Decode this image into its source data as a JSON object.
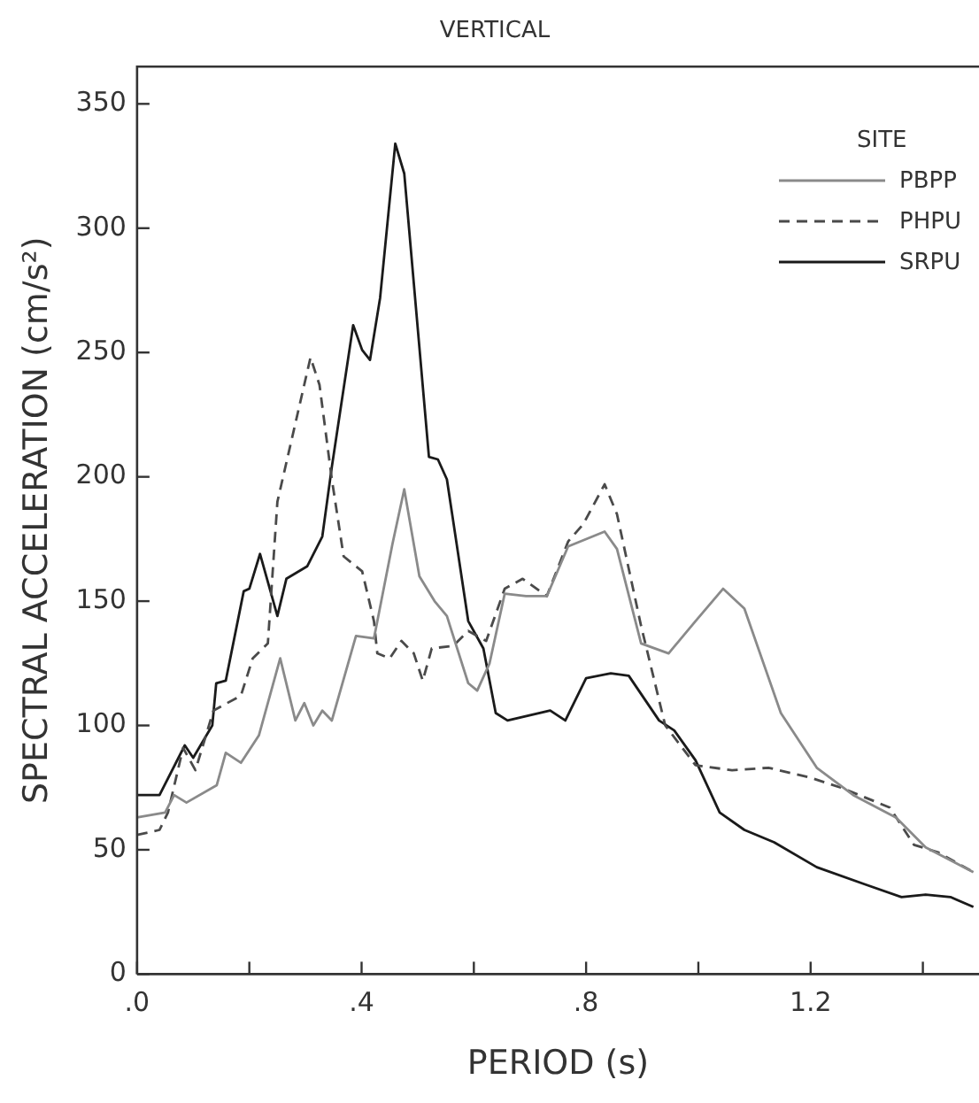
{
  "chart_data": {
    "type": "line",
    "title": "VERTICAL",
    "xlabel": "PERIOD (s)",
    "ylabel": "SPECTRAL ACCELERATION (cm/s²)",
    "legend_title": "SITE",
    "legend": "top right",
    "grid": false,
    "marker": "none",
    "xlim": [
      0,
      1.5
    ],
    "ylim": [
      0,
      365
    ],
    "xticks": [
      {
        "value": 0,
        "label": ".0"
      },
      {
        "value": 0.2,
        "label": null
      },
      {
        "value": 0.4,
        "label": ".4"
      },
      {
        "value": 0.6,
        "label": null
      },
      {
        "value": 0.8,
        "label": ".8"
      },
      {
        "value": 1.0,
        "label": null
      },
      {
        "value": 1.2,
        "label": "1.2"
      },
      {
        "value": 1.4,
        "label": null
      }
    ],
    "yticks": [
      0,
      50,
      100,
      150,
      200,
      250,
      300,
      350
    ],
    "series": [
      {
        "name": "PBPP",
        "color": "#8a8a8a",
        "line_style": "solid",
        "x": [
          0,
          0.05,
          0.066,
          0.088,
          0.142,
          0.158,
          0.185,
          0.217,
          0.255,
          0.282,
          0.298,
          0.314,
          0.33,
          0.347,
          0.39,
          0.422,
          0.455,
          0.476,
          0.503,
          0.53,
          0.552,
          0.59,
          0.606,
          0.628,
          0.655,
          0.693,
          0.73,
          0.768,
          0.833,
          0.855,
          0.898,
          0.947,
          0.995,
          1.044,
          1.082,
          1.147,
          1.211,
          1.276,
          1.352,
          1.405,
          1.49
        ],
        "values": [
          63,
          65,
          72,
          69,
          76,
          89,
          85,
          96,
          127,
          102,
          109,
          100,
          106,
          102,
          136,
          135,
          173,
          195,
          160,
          150,
          144,
          117,
          114,
          125,
          153,
          152,
          152,
          172,
          178,
          171,
          133,
          129,
          142,
          155,
          147,
          105,
          83,
          72,
          63,
          51,
          41
        ]
      },
      {
        "name": "PHPU",
        "color": "#4a4a4a",
        "line_style": "dashed",
        "x": [
          0,
          0.04,
          0.055,
          0.082,
          0.104,
          0.136,
          0.185,
          0.206,
          0.233,
          0.25,
          0.309,
          0.325,
          0.347,
          0.368,
          0.401,
          0.422,
          0.428,
          0.45,
          0.471,
          0.493,
          0.509,
          0.525,
          0.563,
          0.59,
          0.622,
          0.655,
          0.687,
          0.73,
          0.768,
          0.795,
          0.833,
          0.855,
          0.898,
          0.941,
          0.995,
          1.06,
          1.125,
          1.2,
          1.254,
          1.341,
          1.384,
          1.427,
          1.49
        ],
        "values": [
          56,
          58,
          65,
          91,
          82,
          106,
          112,
          127,
          133,
          190,
          248,
          237,
          199,
          168,
          162,
          142,
          129,
          127,
          134,
          129,
          118,
          131,
          132,
          138,
          134,
          155,
          159,
          152,
          174,
          181,
          197,
          185,
          140,
          100,
          84,
          82,
          83,
          79,
          75,
          67,
          52,
          49,
          41
        ]
      },
      {
        "name": "SRPU",
        "color": "#1a1a1a",
        "line_style": "solid",
        "x": [
          0,
          0.04,
          0.085,
          0.1,
          0.134,
          0.141,
          0.158,
          0.19,
          0.2,
          0.219,
          0.25,
          0.266,
          0.303,
          0.33,
          0.347,
          0.385,
          0.401,
          0.415,
          0.433,
          0.46,
          0.476,
          0.52,
          0.536,
          0.552,
          0.59,
          0.617,
          0.639,
          0.66,
          0.736,
          0.763,
          0.8,
          0.844,
          0.876,
          0.93,
          0.957,
          0.995,
          1.038,
          1.082,
          1.135,
          1.211,
          1.298,
          1.362,
          1.405,
          1.449,
          1.49
        ],
        "values": [
          72,
          72,
          92,
          87,
          100,
          117,
          118,
          154,
          155,
          169,
          144,
          159,
          164,
          176,
          204,
          261,
          251,
          247,
          272,
          334,
          322,
          208,
          207,
          199,
          142,
          131,
          105,
          102,
          106,
          102,
          119,
          121,
          120,
          102,
          98,
          86,
          65,
          58,
          53,
          43,
          36,
          31,
          32,
          31,
          27
        ]
      }
    ]
  }
}
